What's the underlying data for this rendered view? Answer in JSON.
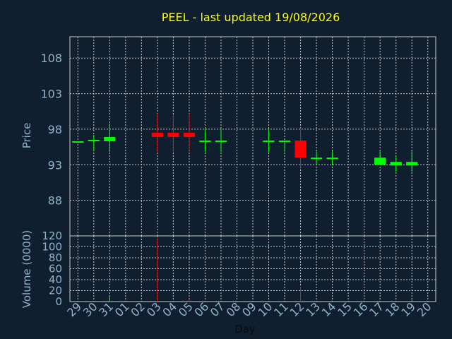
{
  "chart_data": {
    "type": "candlestick",
    "title": "PEEL - last updated 19/08/2026",
    "xlabel": "Day",
    "ylabel_price": "Price",
    "ylabel_volume": "Volume (0000)",
    "grid": true,
    "background": "#0f1f30",
    "up_color": "#00ff00",
    "down_color": "#ff0000",
    "title_color": "#ffff00",
    "tick_color": "#8fb4cc",
    "price_ticks": [
      "108",
      "103",
      "98",
      "93",
      "88"
    ],
    "price_ylim": [
      83,
      111
    ],
    "volume_ticks": [
      "120",
      "100",
      "80",
      "60",
      "40",
      "20",
      "0"
    ],
    "volume_ylim": [
      0,
      120
    ],
    "x_ticks": [
      "29",
      "30",
      "31",
      "01",
      "02",
      "03",
      "04",
      "05",
      "06",
      "07",
      "08",
      "09",
      "10",
      "11",
      "12",
      "13",
      "14",
      "15",
      "16",
      "17",
      "18",
      "19",
      "20"
    ],
    "candles": [
      {
        "day": "29",
        "open": 96.3,
        "high": 96.3,
        "low": 96.3,
        "close": 96.3,
        "volume": 0
      },
      {
        "day": "30",
        "open": 96.3,
        "high": 97.2,
        "low": 95.0,
        "close": 96.5,
        "volume": 0
      },
      {
        "day": "31",
        "open": 96.3,
        "high": 98.8,
        "low": 94.8,
        "close": 96.9,
        "volume": 12
      },
      {
        "day": "03",
        "open": 97.5,
        "high": 100.2,
        "low": 94.8,
        "close": 96.9,
        "volume": 115
      },
      {
        "day": "04",
        "open": 97.5,
        "high": 100.1,
        "low": 94.8,
        "close": 96.9,
        "volume": 0
      },
      {
        "day": "05",
        "open": 97.5,
        "high": 100.2,
        "low": 95.0,
        "close": 96.9,
        "volume": 3
      },
      {
        "day": "06",
        "open": 96.4,
        "high": 98.0,
        "low": 94.8,
        "close": 96.4,
        "volume": 0
      },
      {
        "day": "07",
        "open": 96.4,
        "high": 98.0,
        "low": 94.8,
        "close": 96.4,
        "volume": 0
      },
      {
        "day": "10",
        "open": 96.4,
        "high": 98.0,
        "low": 94.8,
        "close": 96.4,
        "volume": 0
      },
      {
        "day": "11",
        "open": 96.4,
        "high": 96.4,
        "low": 94.8,
        "close": 96.4,
        "volume": 0
      },
      {
        "day": "12",
        "open": 96.4,
        "high": 98.2,
        "low": 92.6,
        "close": 94.0,
        "volume": 28
      },
      {
        "day": "13",
        "open": 94.0,
        "high": 94.9,
        "low": 92.9,
        "close": 94.0,
        "volume": 0
      },
      {
        "day": "14",
        "open": 94.0,
        "high": 95.0,
        "low": 92.9,
        "close": 94.0,
        "volume": 0
      },
      {
        "day": "17",
        "open": 93.0,
        "high": 95.0,
        "low": 93.0,
        "close": 94.0,
        "volume": 0
      },
      {
        "day": "18",
        "open": 92.9,
        "high": 94.1,
        "low": 92.0,
        "close": 93.4,
        "volume": 0
      },
      {
        "day": "19",
        "open": 92.9,
        "high": 95.0,
        "low": 92.0,
        "close": 93.4,
        "volume": 3
      }
    ]
  }
}
